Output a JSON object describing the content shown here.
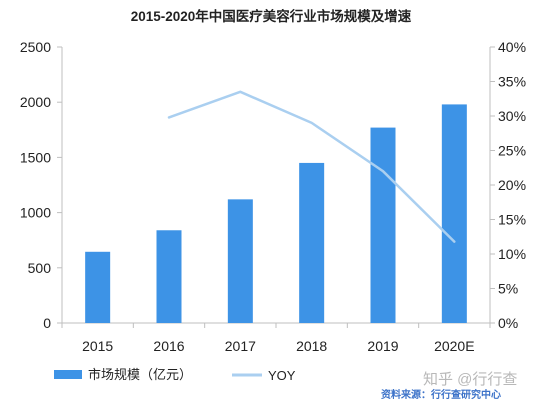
{
  "chart_data": {
    "type": "bar",
    "title": "2015-2020年中国医疗美容行业市场规模及增速",
    "categories": [
      "2015",
      "2016",
      "2017",
      "2018",
      "2019",
      "2020E"
    ],
    "series": [
      {
        "name": "市场规模（亿元）",
        "type": "bar",
        "axis": "left",
        "values": [
          645,
          840,
          1120,
          1450,
          1770,
          1980
        ]
      },
      {
        "name": "YOY",
        "type": "line",
        "axis": "right",
        "values": [
          null,
          0.298,
          0.335,
          0.29,
          0.22,
          0.118
        ]
      }
    ],
    "y_left": {
      "min": 0,
      "max": 2500,
      "ticks": [
        "0",
        "500",
        "1000",
        "1500",
        "2000",
        "2500"
      ]
    },
    "y_right": {
      "min": 0,
      "max": 0.4,
      "ticks": [
        "0%",
        "5%",
        "10%",
        "15%",
        "20%",
        "25%",
        "30%",
        "35%",
        "40%"
      ]
    },
    "legend_position": "bottom-left",
    "grid": false,
    "colors": {
      "bar": "#3d93e6",
      "line": "#aacff0",
      "axis": "#bfbfbf",
      "text": "#222222"
    }
  },
  "watermark": "知乎 @行行查",
  "source": "资料来源：行行查研究中心"
}
